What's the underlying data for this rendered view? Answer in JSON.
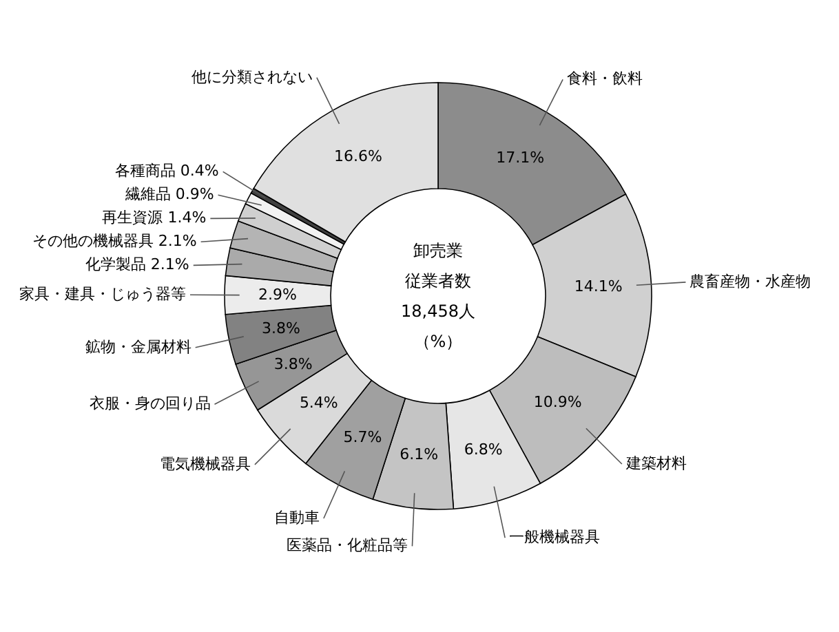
{
  "chart_data": {
    "type": "donut",
    "annotations": [
      "卸売業",
      "従業者数",
      "18,458人",
      "（%）"
    ],
    "categories": [
      "食料・飲料",
      "農畜産物・水産物",
      "建築材料",
      "一般機械器具",
      "医薬品・化粧品等",
      "自動車",
      "電気機械器具",
      "衣服・身の回り品",
      "鉱物・金属材料",
      "家具・建具・じゅう器等",
      "化学製品",
      "その他の機械器具",
      "再生資源",
      "繊維品",
      "各種商品",
      "他に分類されない"
    ],
    "values": [
      17.1,
      14.1,
      10.9,
      6.8,
      6.1,
      5.7,
      5.4,
      3.8,
      3.8,
      2.9,
      2.1,
      2.1,
      1.4,
      0.9,
      0.4,
      16.6
    ],
    "value_labels": [
      "17.1%",
      "14.1%",
      "10.9%",
      "6.8%",
      "6.1%",
      "5.7%",
      "5.4%",
      "3.8%",
      "3.8%",
      "2.9%",
      "2.1%",
      "2.1%",
      "1.4%",
      "0.9%",
      "0.4%",
      "16.6%"
    ],
    "colors": [
      "#8c8c8c",
      "#d0d0d0",
      "#bdbdbd",
      "#e6e6e6",
      "#c4c4c4",
      "#a0a0a0",
      "#dadada",
      "#969696",
      "#828282",
      "#ececec",
      "#aaaaaa",
      "#b4b4b4",
      "#cfcfcf",
      "#f2f2f2",
      "#404040",
      "#e0e0e0"
    ]
  }
}
